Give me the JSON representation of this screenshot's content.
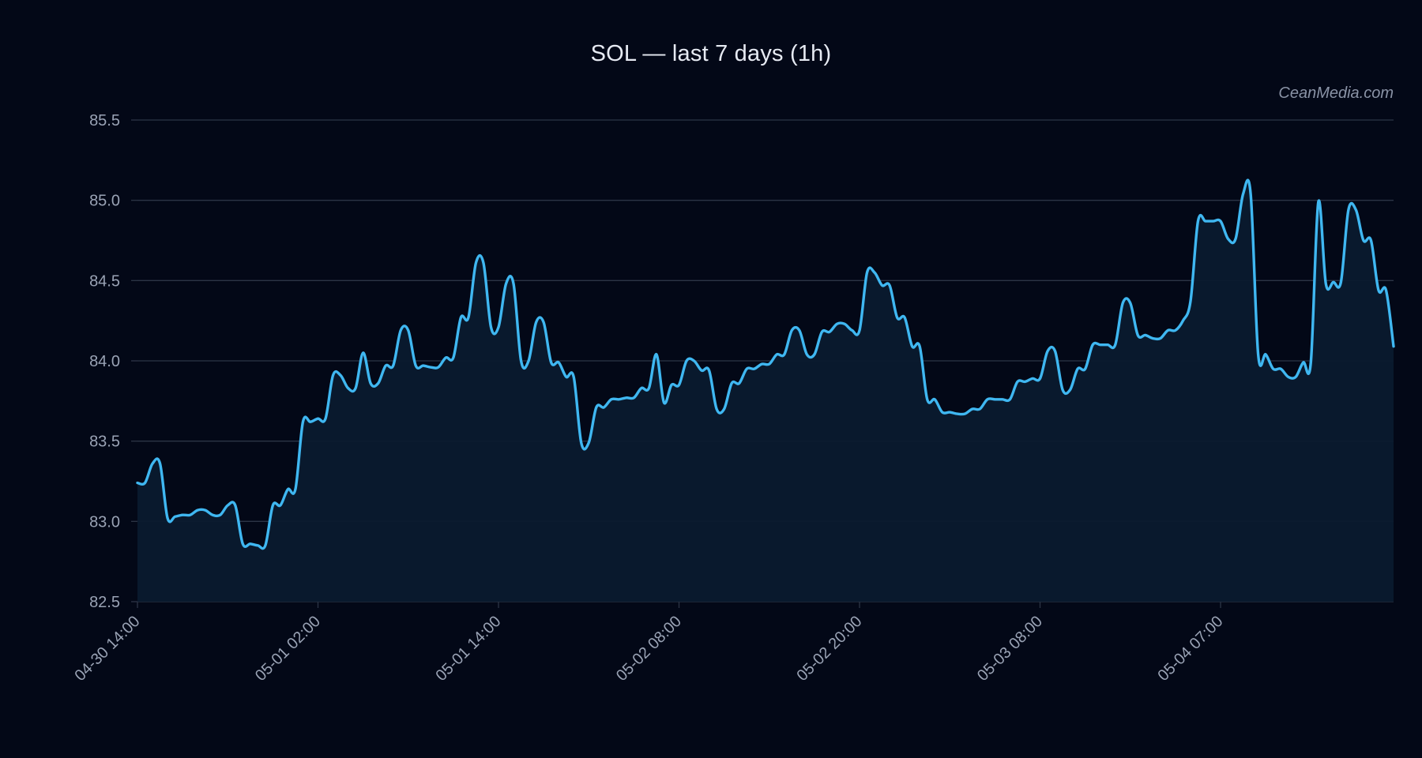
{
  "watermark": "CeanMedia.com",
  "colors": {
    "background": "#030817",
    "line": "#3fb7f1",
    "area": "#0a1a2e",
    "grid": "#2c3546",
    "text": "#9aa3b5"
  },
  "chart_data": {
    "type": "area",
    "title": "SOL — last 7 days (1h)",
    "xlabel": "",
    "ylabel": "",
    "ylim": [
      82.5,
      85.5
    ],
    "grid": true,
    "legend": "none",
    "y_ticks": [
      "82.5",
      "83.0",
      "83.5",
      "84.0",
      "84.5",
      "85.0",
      "85.5"
    ],
    "x_ticks": [
      {
        "label": "04-30 14:00",
        "index": 0
      },
      {
        "label": "05-01 02:00",
        "index": 24
      },
      {
        "label": "05-01 14:00",
        "index": 48
      },
      {
        "label": "05-02 08:00",
        "index": 72
      },
      {
        "label": "05-02 20:00",
        "index": 96
      },
      {
        "label": "05-03 08:00",
        "index": 120
      },
      {
        "label": "05-04 07:00",
        "index": 144
      }
    ],
    "series": [
      {
        "values": [
          83.24,
          83.24,
          83.36,
          83.36,
          83.02,
          83.03,
          83.04,
          83.04,
          83.07,
          83.07,
          83.04,
          83.04,
          83.1,
          83.1,
          82.86,
          82.86,
          82.85,
          82.85,
          83.1,
          83.1,
          83.2,
          83.2,
          83.62,
          83.62,
          83.64,
          83.64,
          83.91,
          83.91,
          83.83,
          83.83,
          84.05,
          83.86,
          83.86,
          83.97,
          83.97,
          84.19,
          84.19,
          83.97,
          83.97,
          83.96,
          83.96,
          84.02,
          84.02,
          84.27,
          84.27,
          84.61,
          84.61,
          84.21,
          84.21,
          84.48,
          84.48,
          84.0,
          84.0,
          84.24,
          84.24,
          83.99,
          83.99,
          83.9,
          83.9,
          83.49,
          83.49,
          83.71,
          83.71,
          83.76,
          83.76,
          83.77,
          83.77,
          83.83,
          83.83,
          84.04,
          83.74,
          83.85,
          83.85,
          84.0,
          84.0,
          83.94,
          83.94,
          83.7,
          83.7,
          83.86,
          83.86,
          83.95,
          83.95,
          83.98,
          83.98,
          84.04,
          84.04,
          84.19,
          84.19,
          84.04,
          84.04,
          84.18,
          84.18,
          84.23,
          84.23,
          84.19,
          84.19,
          84.55,
          84.55,
          84.47,
          84.47,
          84.27,
          84.27,
          84.09,
          84.09,
          83.76,
          83.76,
          83.68,
          83.68,
          83.67,
          83.67,
          83.7,
          83.7,
          83.76,
          83.76,
          83.76,
          83.76,
          83.87,
          83.87,
          83.89,
          83.89,
          84.06,
          84.06,
          83.82,
          83.82,
          83.95,
          83.95,
          84.1,
          84.1,
          84.1,
          84.1,
          84.36,
          84.36,
          84.16,
          84.16,
          84.14,
          84.14,
          84.19,
          84.19,
          84.25,
          84.37,
          84.87,
          84.87,
          84.87,
          84.87,
          84.76,
          84.76,
          85.04,
          85.04,
          84.04,
          84.04,
          83.95,
          83.95,
          83.9,
          83.9,
          83.99,
          83.99,
          84.99,
          84.48,
          84.49,
          84.49,
          84.94,
          84.94,
          84.75,
          84.75,
          84.44,
          84.44,
          84.09
        ]
      }
    ]
  }
}
